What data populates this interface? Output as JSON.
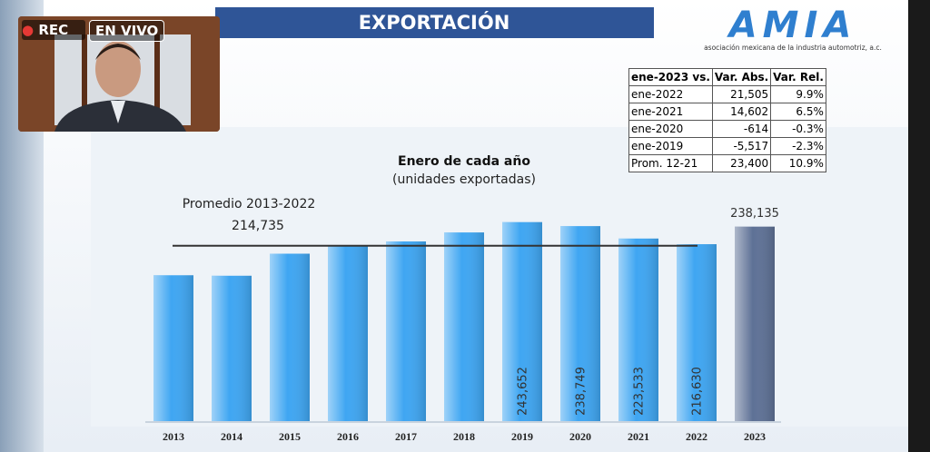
{
  "overlay": {
    "rec": "REC",
    "live": "EN VIVO"
  },
  "header": {
    "title": "EXPORTACIÓN",
    "logo": "AMIA",
    "logo_subtitle": "asociación mexicana de la industria automotriz, a.c."
  },
  "table": {
    "header": [
      "ene-2023 vs.",
      "Var. Abs.",
      "Var. Rel."
    ],
    "rows": [
      [
        "ene-2022",
        "21,505",
        "9.9%"
      ],
      [
        "ene-2021",
        "14,602",
        "6.5%"
      ],
      [
        "ene-2020",
        "-614",
        "-0.3%"
      ],
      [
        "ene-2019",
        "-5,517",
        "-2.3%"
      ],
      [
        "Prom. 12-21",
        "23,400",
        "10.9%"
      ]
    ]
  },
  "chart_data": {
    "type": "bar",
    "title": "Enero de cada año",
    "subtitle": "(unidades exportadas)",
    "categories": [
      "2013",
      "2014",
      "2015",
      "2016",
      "2017",
      "2018",
      "2019",
      "2020",
      "2021",
      "2022",
      "2023"
    ],
    "values": [
      178600,
      178000,
      205000,
      215000,
      220000,
      231000,
      243652,
      238749,
      223533,
      216630,
      238135
    ],
    "value_labels": [
      null,
      null,
      null,
      null,
      null,
      null,
      "243,652",
      "238,749",
      "223,533",
      "216,630",
      "238,135"
    ],
    "colors": [
      "#3fa6f2",
      "#3fa6f2",
      "#3fa6f2",
      "#3fa6f2",
      "#3fa6f2",
      "#3fa6f2",
      "#3fa6f2",
      "#3fa6f2",
      "#3fa6f2",
      "#3fa6f2",
      "#5e7196"
    ],
    "ylim": [
      0,
      260000
    ],
    "average": {
      "label": "Promedio 2013-2022",
      "value": 214735,
      "value_label": "214,735"
    }
  }
}
